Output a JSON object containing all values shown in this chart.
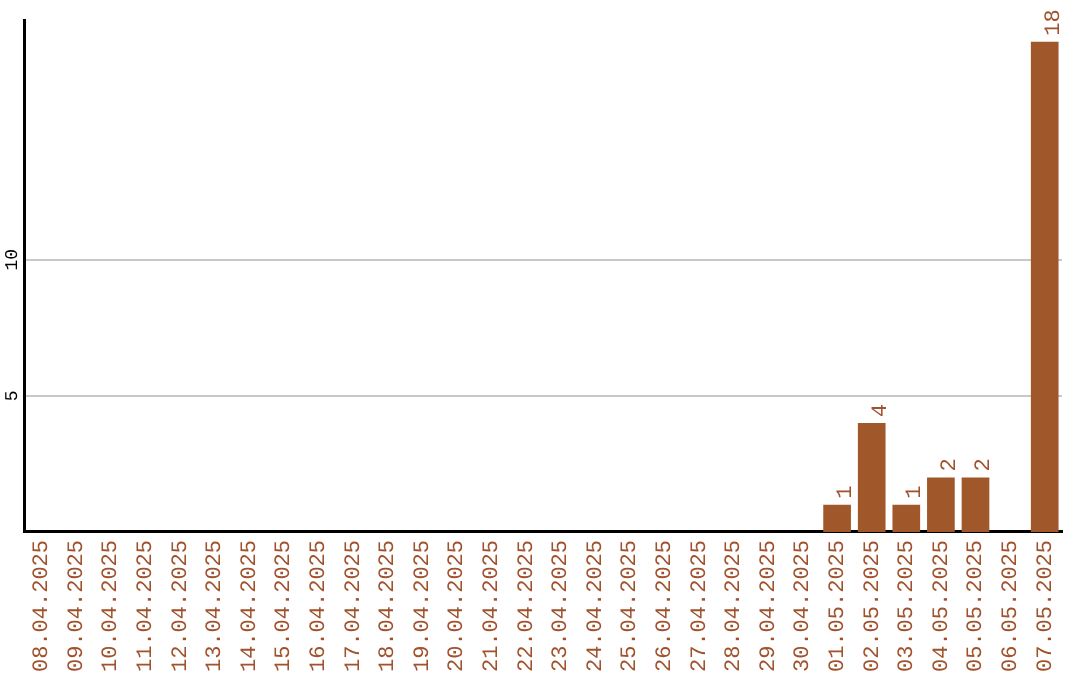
{
  "chart_data": {
    "type": "bar",
    "categories": [
      "08.04.2025",
      "09.04.2025",
      "10.04.2025",
      "11.04.2025",
      "12.04.2025",
      "13.04.2025",
      "14.04.2025",
      "15.04.2025",
      "16.04.2025",
      "17.04.2025",
      "18.04.2025",
      "19.04.2025",
      "20.04.2025",
      "21.04.2025",
      "22.04.2025",
      "23.04.2025",
      "24.04.2025",
      "25.04.2025",
      "26.04.2025",
      "27.04.2025",
      "28.04.2025",
      "29.04.2025",
      "30.04.2025",
      "01.05.2025",
      "02.05.2025",
      "03.05.2025",
      "04.05.2025",
      "05.05.2025",
      "06.05.2025",
      "07.05.2025"
    ],
    "values": [
      0,
      0,
      0,
      0,
      0,
      0,
      0,
      0,
      0,
      0,
      0,
      0,
      0,
      0,
      0,
      0,
      0,
      0,
      0,
      0,
      0,
      0,
      0,
      1,
      4,
      1,
      2,
      2,
      0,
      18
    ],
    "value_labels": [
      null,
      null,
      null,
      null,
      null,
      null,
      null,
      null,
      null,
      null,
      null,
      null,
      null,
      null,
      null,
      null,
      null,
      null,
      null,
      null,
      null,
      null,
      null,
      "1",
      "4",
      "1",
      "2",
      "2",
      null,
      "18"
    ],
    "color": "#a0572a",
    "ylim": [
      0,
      18.8
    ],
    "yticks": [
      5,
      10
    ],
    "grid": "y",
    "legend": false
  }
}
